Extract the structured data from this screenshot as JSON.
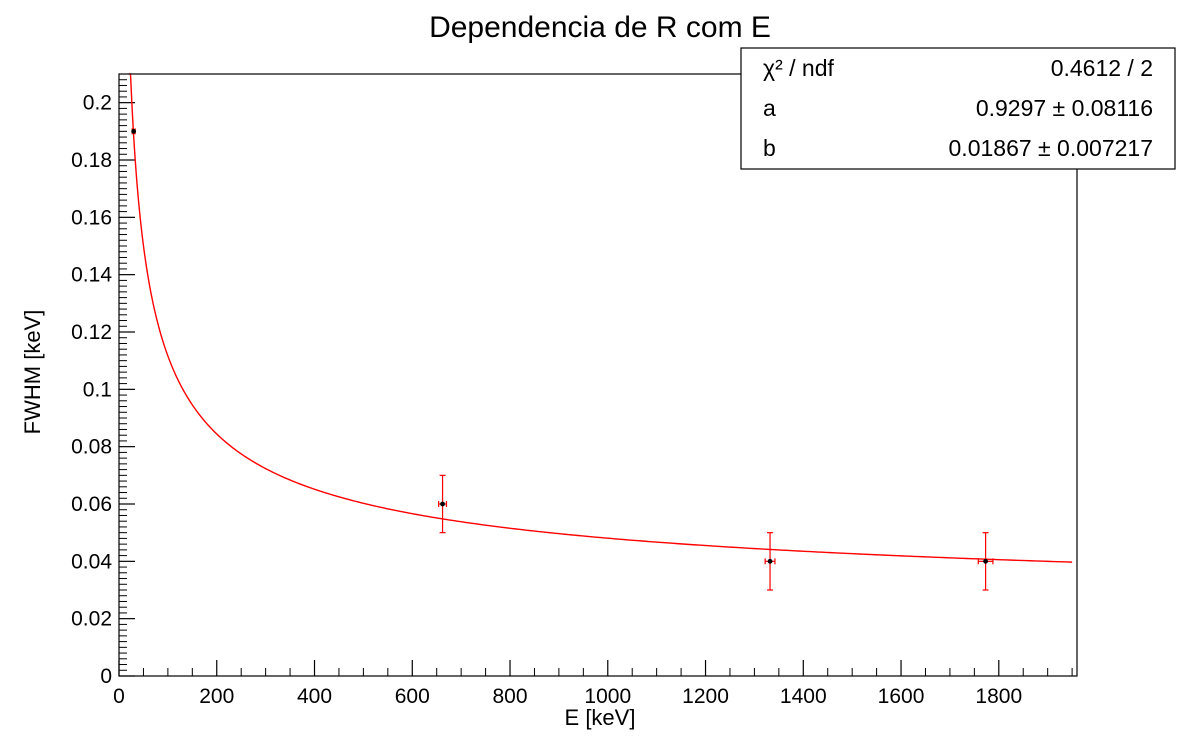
{
  "chart_data": {
    "type": "scatter",
    "title": "Dependencia de R com E",
    "xlabel": "E [keV]",
    "ylabel": "FWHM [keV]",
    "xlim": [
      0,
      1960
    ],
    "ylim": [
      0,
      0.21
    ],
    "x_ticks": [
      0,
      200,
      400,
      600,
      800,
      1000,
      1200,
      1400,
      1600,
      1800
    ],
    "x_tick_labels": [
      "0",
      "200",
      "400",
      "600",
      "800",
      "1000",
      "1200",
      "1400",
      "1600",
      "1800"
    ],
    "y_ticks": [
      0,
      0.02,
      0.04,
      0.06,
      0.08,
      0.1,
      0.12,
      0.14,
      0.16,
      0.18,
      0.2
    ],
    "y_tick_labels": [
      "0",
      "0.02",
      "0.04",
      "0.06",
      "0.08",
      "0.1",
      "0.12",
      "0.14",
      "0.16",
      "0.18",
      "0.2"
    ],
    "grid": false,
    "series": [
      {
        "points": [
          {
            "x": 30,
            "y": 0.19,
            "ex": 3,
            "ey": 0
          },
          {
            "x": 662,
            "y": 0.06,
            "ex": 8,
            "ey": 0.01
          },
          {
            "x": 1332,
            "y": 0.04,
            "ex": 10,
            "ey": 0.01
          },
          {
            "x": 1773,
            "y": 0.04,
            "ex": 15,
            "ey": 0.01
          }
        ],
        "marker_color": "#000000",
        "error_color": "#ff0000"
      }
    ],
    "fit": {
      "color": "#ff0000",
      "params": {
        "a": 0.9297,
        "b": 0.01867
      },
      "x_range": [
        20,
        1950
      ]
    },
    "stats_box": {
      "placement": "top-right",
      "rows": [
        {
          "label": "χ² / ndf",
          "value": "0.4612 / 2"
        },
        {
          "label": "a",
          "value": "0.9297 ± 0.08116"
        },
        {
          "label": "b",
          "value": "0.01867 ± 0.007217"
        }
      ]
    }
  }
}
